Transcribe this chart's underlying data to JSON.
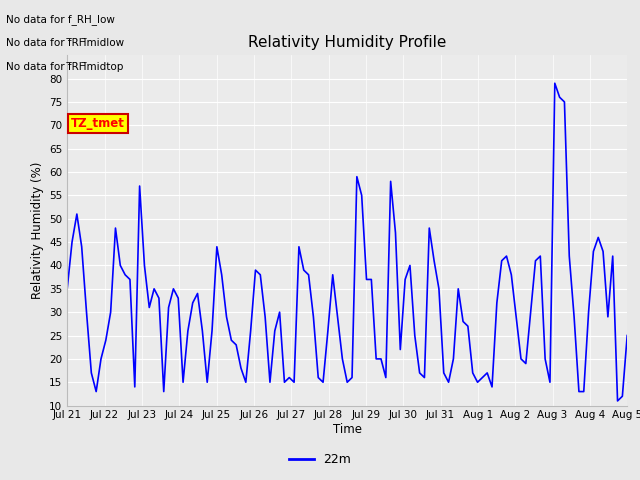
{
  "title": "Relativity Humidity Profile",
  "ylabel": "Relativity Humidity (%)",
  "xlabel": "Time",
  "ylim": [
    10,
    85
  ],
  "yticks": [
    10,
    15,
    20,
    25,
    30,
    35,
    40,
    45,
    50,
    55,
    60,
    65,
    70,
    75,
    80
  ],
  "line_color": "blue",
  "line_width": 1.2,
  "bg_color": "#e8e8e8",
  "plot_bg_color": "#ebebeb",
  "annotations": [
    "No data for f_RH_low",
    "No data for f̅RH̅midlow",
    "No data for f̅RH̅midtop"
  ],
  "legend_label": "22m",
  "legend_color": "blue",
  "tz_label": "TZ_tmet",
  "x_tick_labels": [
    "Jul 21",
    "Jul 22",
    "Jul 23",
    "Jul 24",
    "Jul 25",
    "Jul 26",
    "Jul 27",
    "Jul 28",
    "Jul 29",
    "Jul 30",
    "Jul 31",
    "Aug 1",
    "Aug 2",
    "Aug 3",
    "Aug 4",
    "Aug 5"
  ],
  "y_data": [
    35,
    45,
    51,
    44,
    30,
    17,
    13,
    20,
    24,
    30,
    48,
    40,
    38,
    37,
    14,
    57,
    40,
    31,
    35,
    33,
    13,
    31,
    35,
    33,
    15,
    26,
    32,
    34,
    26,
    15,
    26,
    44,
    38,
    29,
    24,
    23,
    18,
    15,
    26,
    39,
    38,
    29,
    15,
    26,
    30,
    15,
    16,
    15,
    44,
    39,
    38,
    29,
    16,
    15,
    26,
    38,
    29,
    20,
    15,
    16,
    59,
    55,
    37,
    37,
    20,
    20,
    16,
    58,
    47,
    22,
    37,
    40,
    25,
    17,
    16,
    48,
    41,
    35,
    17,
    15,
    20,
    35,
    28,
    27,
    17,
    15,
    16,
    17,
    14,
    32,
    41,
    42,
    38,
    29,
    20,
    19,
    30,
    41,
    42,
    20,
    15,
    79,
    76,
    75,
    42,
    29,
    13,
    13,
    30,
    43,
    46,
    43,
    29,
    42,
    11,
    12,
    25
  ]
}
